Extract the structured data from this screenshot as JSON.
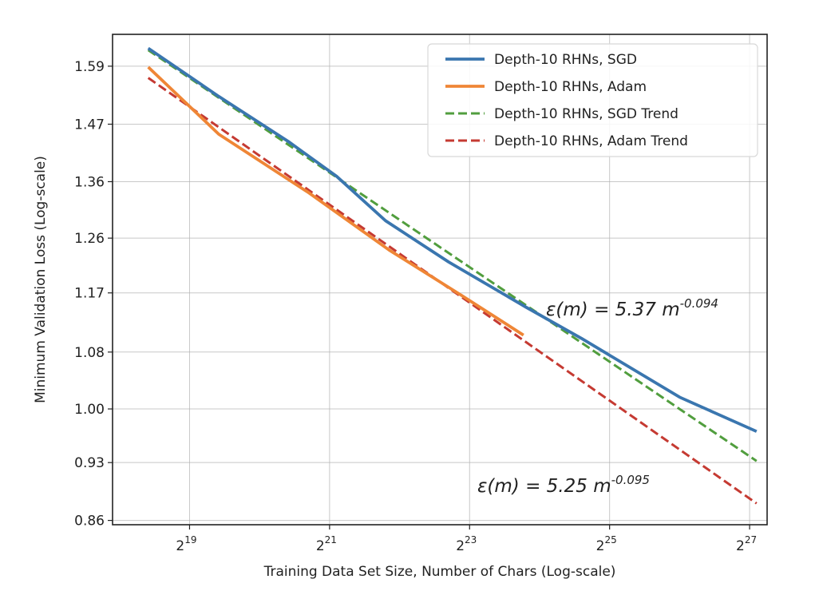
{
  "chart_data": {
    "type": "line",
    "title": "",
    "xlabel": "Training Data Set Size, Number of Chars (Log-scale)",
    "ylabel": "Minimum Validation Loss (Log-scale)",
    "xscale": "log2",
    "yscale": "log",
    "xlim_log2": [
      17.9,
      27.25
    ],
    "ylim": [
      0.855,
      1.66
    ],
    "x_ticks": [
      {
        "exp": 19,
        "base": "2",
        "sup": "19"
      },
      {
        "exp": 21,
        "base": "2",
        "sup": "21"
      },
      {
        "exp": 23,
        "base": "2",
        "sup": "23"
      },
      {
        "exp": 25,
        "base": "2",
        "sup": "25"
      },
      {
        "exp": 27,
        "base": "2",
        "sup": "27"
      }
    ],
    "y_ticks": [
      1.59,
      1.47,
      1.36,
      1.26,
      1.17,
      1.08,
      1.0,
      0.93,
      0.86
    ],
    "y_tick_labels": [
      "1.59",
      "1.47",
      "1.36",
      "1.26",
      "1.17",
      "1.08",
      "1.00",
      "0.93",
      "0.86"
    ],
    "grid": true,
    "legend_position": "top-right",
    "series": [
      {
        "name": "Depth-10 RHNs, SGD",
        "color": "#3a76af",
        "style": "solid",
        "x_log2": [
          18.41,
          19.42,
          20.41,
          21.1,
          21.8,
          22.7,
          23.8,
          24.6,
          26.0,
          27.1
        ],
        "values": [
          1.629,
          1.526,
          1.436,
          1.37,
          1.29,
          1.22,
          1.148,
          1.1,
          1.016,
          0.97
        ]
      },
      {
        "name": "Depth-10 RHNs, Adam",
        "color": "#ef8636",
        "style": "solid",
        "x_log2": [
          18.41,
          19.42,
          20.7,
          21.85,
          22.9,
          23.77
        ],
        "values": [
          1.588,
          1.45,
          1.34,
          1.24,
          1.165,
          1.105
        ]
      },
      {
        "name": "Depth-10 RHNs, SGD Trend",
        "color": "#519e3e",
        "style": "dashed",
        "x_log2": [
          18.41,
          27.1
        ],
        "values": [
          1.625,
          0.932
        ]
      },
      {
        "name": "Depth-10 RHNs, Adam Trend",
        "color": "#c53a32",
        "style": "dashed",
        "x_log2": [
          18.41,
          27.1
        ],
        "values": [
          1.565,
          0.88
        ]
      }
    ],
    "annotations": [
      {
        "text": "ε(m) = 5.37 m",
        "sup": "-0.094",
        "near_series": "Depth-10 RHNs, SGD Trend"
      },
      {
        "text": "ε(m) = 5.25 m",
        "sup": "-0.095",
        "near_series": "Depth-10 RHNs, Adam Trend"
      }
    ]
  }
}
